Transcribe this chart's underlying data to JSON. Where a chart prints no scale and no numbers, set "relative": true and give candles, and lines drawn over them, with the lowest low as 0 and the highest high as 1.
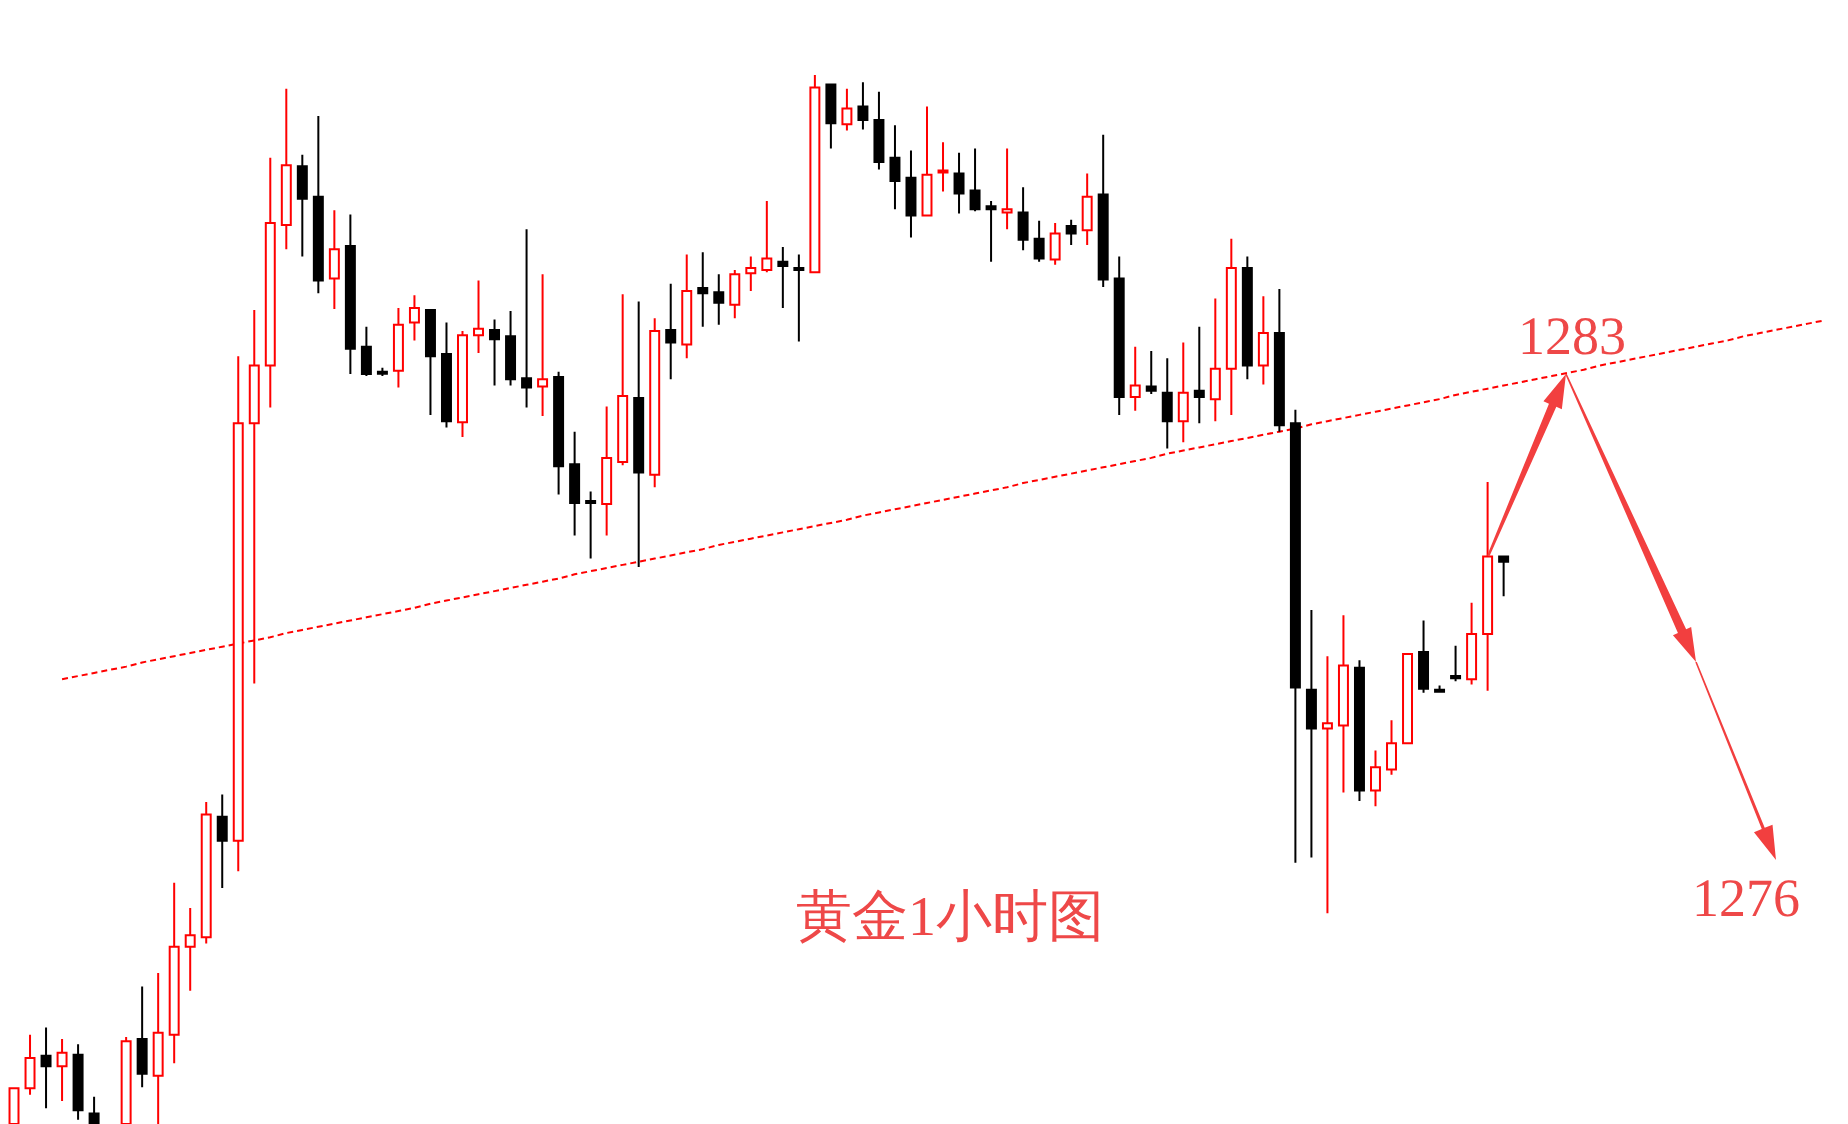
{
  "chart_data": {
    "type": "candlestick",
    "relative": true,
    "categories": [
      null,
      null,
      null,
      null,
      null,
      null,
      null,
      null,
      null,
      null,
      null,
      null,
      null,
      null,
      null,
      null,
      null,
      null,
      null,
      null,
      null,
      null,
      null,
      null,
      null,
      null,
      null,
      null,
      null,
      null,
      null,
      null,
      null,
      null,
      null,
      null,
      null,
      null,
      null,
      null,
      null,
      null,
      null,
      null,
      null,
      null,
      null,
      null,
      null,
      null,
      null,
      null,
      null,
      null,
      null,
      null,
      null,
      null,
      null,
      null,
      null,
      null,
      null,
      null,
      null,
      null,
      null,
      null,
      null,
      null,
      null,
      null,
      null,
      null,
      null,
      null,
      null,
      null,
      null,
      null,
      null,
      null,
      null,
      null,
      null,
      null,
      null,
      null,
      null,
      null,
      null,
      null,
      null,
      null,
      null,
      null,
      null,
      null,
      null,
      null,
      null,
      null,
      null,
      null,
      null,
      null,
      null,
      null,
      null,
      null,
      null,
      null,
      null,
      null,
      null
    ],
    "ohlc": [
      [
        0,
        0.034,
        0,
        0.034
      ],
      [
        0.034,
        0.085,
        0.028,
        0.063
      ],
      [
        0.065,
        0.092,
        0.015,
        0.055
      ],
      [
        0.055,
        0.081,
        0.022,
        0.068
      ],
      [
        0.066,
        0.076,
        0.004,
        0.013
      ],
      [
        0.01,
        0.026,
        0,
        0
      ],
      null,
      [
        0,
        0.083,
        0,
        0.079
      ],
      [
        0.081,
        0.131,
        0.035,
        0.048
      ],
      [
        0.046,
        0.144,
        0,
        0.087
      ],
      [
        0.085,
        0.23,
        0.058,
        0.169
      ],
      [
        0.169,
        0.206,
        0.127,
        0.18
      ],
      [
        0.178,
        0.307,
        0.172,
        0.295
      ],
      [
        0.293,
        0.314,
        0.225,
        0.27
      ],
      [
        0.27,
        0.732,
        0.241,
        0.668
      ],
      [
        0.668,
        0.776,
        0.42,
        0.723
      ],
      [
        0.723,
        0.921,
        0.683,
        0.859
      ],
      [
        0.857,
        0.987,
        0.834,
        0.914
      ],
      [
        0.913,
        0.924,
        0.827,
        0.882
      ],
      [
        0.884,
        0.961,
        0.792,
        0.804
      ],
      [
        0.806,
        0.871,
        0.777,
        0.834
      ],
      [
        0.837,
        0.867,
        0.715,
        0.739
      ],
      [
        0.741,
        0.76,
        0.713,
        0.715
      ],
      [
        0.717,
        0.721,
        0.713,
        0.716
      ],
      [
        0.718,
        0.778,
        0.702,
        0.762
      ],
      [
        0.764,
        0.79,
        0.747,
        0.778
      ],
      [
        0.776,
        0.777,
        0.676,
        0.732
      ],
      [
        0.734,
        0.764,
        0.664,
        0.67
      ],
      [
        0.669,
        0.756,
        0.655,
        0.752
      ],
      [
        0.752,
        0.804,
        0.735,
        0.758
      ],
      [
        0.757,
        0.767,
        0.704,
        0.748
      ],
      [
        0.751,
        0.775,
        0.704,
        0.71
      ],
      [
        0.711,
        0.853,
        0.683,
        0.702
      ],
      [
        0.703,
        0.81,
        0.675,
        0.71
      ],
      [
        0.712,
        0.717,
        0.6,
        0.627
      ],
      [
        0.629,
        0.66,
        0.561,
        0.592
      ],
      [
        0.594,
        0.603,
        0.539,
        0.592
      ],
      [
        0.591,
        0.684,
        0.561,
        0.635
      ],
      [
        0.631,
        0.791,
        0.628,
        0.694
      ],
      [
        0.692,
        0.784,
        0.531,
        0.621
      ],
      [
        0.619,
        0.768,
        0.607,
        0.756
      ],
      [
        0.757,
        0.801,
        0.71,
        0.745
      ],
      [
        0.743,
        0.829,
        0.73,
        0.794
      ],
      [
        0.797,
        0.831,
        0.76,
        0.792
      ],
      [
        0.793,
        0.81,
        0.762,
        0.783
      ],
      [
        0.781,
        0.814,
        0.768,
        0.81
      ],
      [
        0.811,
        0.827,
        0.794,
        0.816
      ],
      [
        0.814,
        0.88,
        0.812,
        0.825
      ],
      [
        0.822,
        0.836,
        0.778,
        0.818
      ],
      [
        0.816,
        0.829,
        0.746,
        0.814
      ],
      [
        0.812,
        1.0,
        0.812,
        0.988
      ],
      [
        0.991,
        0.991,
        0.93,
        0.954
      ],
      [
        0.953,
        0.987,
        0.947,
        0.968
      ],
      [
        0.97,
        0.993,
        0.948,
        0.957
      ],
      [
        0.957,
        0.984,
        0.91,
        0.917
      ],
      [
        0.921,
        0.952,
        0.872,
        0.899
      ],
      [
        0.902,
        0.928,
        0.845,
        0.866
      ],
      [
        0.866,
        0.97,
        0.865,
        0.905
      ],
      [
        0.907,
        0.936,
        0.889,
        0.909
      ],
      [
        0.906,
        0.926,
        0.868,
        0.887
      ],
      [
        0.89,
        0.93,
        0.87,
        0.872
      ],
      [
        0.875,
        0.88,
        0.822,
        0.872
      ],
      [
        0.869,
        0.93,
        0.853,
        0.872
      ],
      [
        0.869,
        0.893,
        0.833,
        0.843
      ],
      [
        0.844,
        0.861,
        0.822,
        0.825
      ],
      [
        0.824,
        0.859,
        0.819,
        0.849
      ],
      [
        0.856,
        0.862,
        0.838,
        0.849
      ],
      [
        0.852,
        0.906,
        0.838,
        0.884
      ],
      [
        0.886,
        0.943,
        0.798,
        0.805
      ],
      [
        0.806,
        0.827,
        0.676,
        0.693
      ],
      [
        0.693,
        0.741,
        0.68,
        0.704
      ],
      [
        0.703,
        0.737,
        0.696,
        0.699
      ],
      [
        0.697,
        0.73,
        0.644,
        0.67
      ],
      [
        0.67,
        0.745,
        0.65,
        0.697
      ],
      [
        0.699,
        0.76,
        0.668,
        0.693
      ],
      [
        0.691,
        0.787,
        0.67,
        0.72
      ],
      [
        0.72,
        0.844,
        0.676,
        0.816
      ],
      [
        0.816,
        0.827,
        0.71,
        0.723
      ],
      [
        0.723,
        0.789,
        0.705,
        0.754
      ],
      [
        0.754,
        0.796,
        0.66,
        0.666
      ],
      [
        0.668,
        0.681,
        0.249,
        0.416
      ],
      [
        0.414,
        0.49,
        0.254,
        0.377
      ],
      [
        0.377,
        0.446,
        0.201,
        0.382
      ],
      [
        0.38,
        0.485,
        0.316,
        0.437
      ],
      [
        0.435,
        0.442,
        0.308,
        0.318
      ],
      [
        0.318,
        0.356,
        0.303,
        0.34
      ],
      [
        0.338,
        0.385,
        0.333,
        0.363
      ],
      [
        0.363,
        0.448,
        0.363,
        0.448
      ],
      [
        0.45,
        0.48,
        0.411,
        0.415
      ],
      [
        0.414,
        0.418,
        0.413,
        0.413
      ],
      [
        0.427,
        0.456,
        0.422,
        0.425
      ],
      [
        0.424,
        0.497,
        0.419,
        0.467
      ],
      [
        0.467,
        0.612,
        0.413,
        0.541
      ],
      [
        0.541,
        0.541,
        0.503,
        0.536
      ],
      null,
      null,
      null,
      null,
      null,
      null,
      null,
      null,
      null,
      null,
      null,
      null,
      null,
      null,
      null,
      null,
      null,
      null,
      null,
      null,
      null
    ],
    "colors": [
      "#ff0000",
      "#ff0000",
      "#000000",
      "#ff0000",
      "#000000",
      "#000000",
      null,
      "#ff0000",
      "#000000",
      "#ff0000",
      "#ff0000",
      "#ff0000",
      "#ff0000",
      "#000000",
      "#ff0000",
      "#ff0000",
      "#ff0000",
      "#ff0000",
      "#000000",
      "#000000",
      "#ff0000",
      "#000000",
      "#000000",
      "#000000",
      "#ff0000",
      "#ff0000",
      "#000000",
      "#000000",
      "#ff0000",
      "#ff0000",
      "#000000",
      "#000000",
      "#000000",
      "#ff0000",
      "#000000",
      "#000000",
      "#000000",
      "#ff0000",
      "#ff0000",
      "#000000",
      "#ff0000",
      "#000000",
      "#ff0000",
      "#000000",
      "#000000",
      "#ff0000",
      "#ff0000",
      "#ff0000",
      "#000000",
      "#000000",
      "#ff0000",
      "#000000",
      "#ff0000",
      "#000000",
      "#000000",
      "#000000",
      "#000000",
      "#ff0000",
      "#ff0000",
      "#000000",
      "#000000",
      "#000000",
      "#ff0000",
      "#000000",
      "#000000",
      "#ff0000",
      "#000000",
      "#ff0000",
      "#000000",
      "#000000",
      "#ff0000",
      "#000000",
      "#000000",
      "#ff0000",
      "#000000",
      "#ff0000",
      "#ff0000",
      "#000000",
      "#ff0000",
      "#000000",
      "#000000",
      "#000000",
      "#ff0000",
      "#ff0000",
      "#000000",
      "#ff0000",
      "#ff0000",
      "#ff0000",
      "#000000",
      "#000000",
      "#000000",
      "#ff0000",
      "#ff0000",
      "#000000",
      null,
      null,
      null,
      null,
      null,
      null,
      null,
      null,
      null,
      null,
      null,
      null,
      null,
      null,
      null,
      null,
      null,
      null,
      null,
      null,
      null
    ],
    "series": [
      {
        "type": "line",
        "color": "#ff0000",
        "line_style": "dashed",
        "values": [
          null,
          null,
          null,
          0.424,
          0.427,
          0.43,
          0.433,
          0.436,
          0.44,
          0.443,
          0.446,
          0.449,
          0.452,
          0.455,
          0.458,
          0.461,
          0.464,
          0.468,
          0.471,
          0.474,
          0.477,
          0.48,
          0.483,
          0.486,
          0.489,
          0.492,
          0.496,
          0.499,
          0.502,
          0.505,
          0.508,
          0.511,
          0.514,
          0.517,
          0.52,
          0.524,
          0.527,
          0.53,
          0.533,
          0.536,
          0.539,
          0.542,
          0.545,
          0.548,
          0.552,
          0.555,
          0.558,
          0.561,
          0.564,
          0.567,
          0.57,
          0.573,
          0.576,
          0.58,
          0.583,
          0.586,
          0.589,
          0.592,
          0.595,
          0.598,
          0.601,
          0.604,
          0.607,
          0.611,
          0.614,
          0.617,
          0.62,
          0.623,
          0.626,
          0.629,
          0.632,
          0.635,
          0.639,
          0.642,
          0.645,
          0.648,
          0.651,
          0.654,
          0.657,
          0.66,
          0.663,
          0.667,
          0.67,
          0.673,
          0.676,
          0.679,
          0.682,
          0.685,
          0.688,
          0.691,
          0.695,
          0.698,
          0.701,
          0.704,
          0.707,
          0.71,
          0.713,
          0.716,
          0.719,
          0.723,
          0.726,
          0.729,
          0.732,
          0.735,
          0.738,
          0.741,
          0.744,
          0.747,
          0.751,
          0.754,
          0.757,
          0.76,
          0.763,
          0.766,
          null
        ]
      }
    ],
    "annotations": [
      "黄金1小时图",
      "1283",
      "1276"
    ]
  }
}
